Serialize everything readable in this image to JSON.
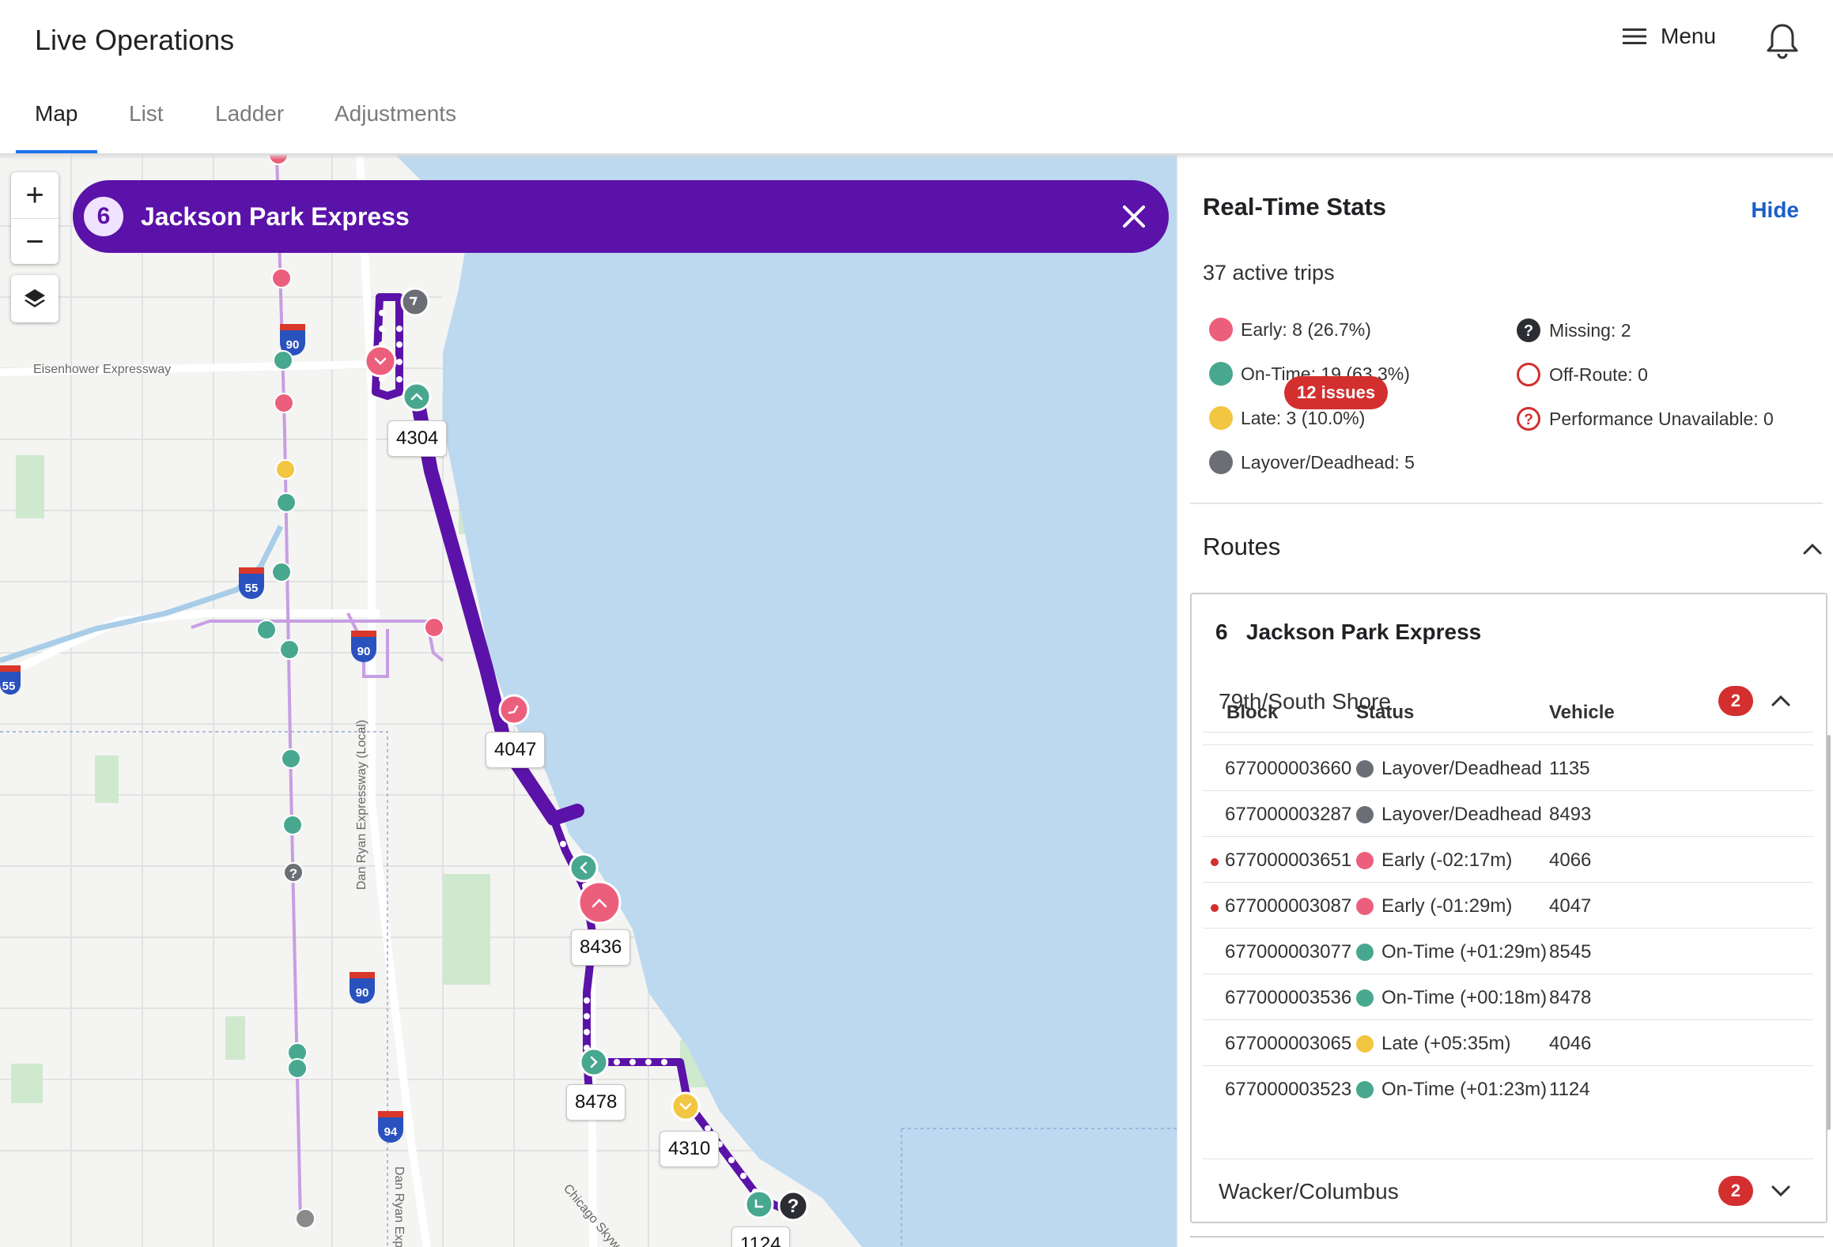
{
  "header": {
    "title": "Live Operations",
    "menu_label": "Menu"
  },
  "tabs": [
    {
      "label": "Map",
      "active": true
    },
    {
      "label": "List",
      "active": false
    },
    {
      "label": "Ladder",
      "active": false
    },
    {
      "label": "Adjustments",
      "active": false
    }
  ],
  "map": {
    "route_number": "6",
    "route_name": "Jackson Park Express",
    "street_labels": {
      "eisenhower": "Eisenhower Expressway",
      "dan_ryan_local": "Dan Ryan Expressway (Local)",
      "dan_ryan": "Dan Ryan Exp",
      "chicago_skyway": "Chicago Skyway"
    },
    "shields": [
      "90",
      "55",
      "90",
      "55",
      "90",
      "94"
    ],
    "vehicle_labels": [
      "4304",
      "4047",
      "8436",
      "8478",
      "4310",
      "1124"
    ],
    "colors": {
      "route": "#5b12a8",
      "early": "#ec5f7c",
      "on_time": "#48a88f",
      "late": "#f2c641",
      "layover": "#6b6f75",
      "missing": "#2b2d33",
      "water": "#bcd9f0"
    }
  },
  "stats": {
    "title": "Real-Time Stats",
    "hide_label": "Hide",
    "active_trips": "37 active trips",
    "legend": {
      "early": "Early: 8 (26.7%)",
      "on_time": "On-Time: 19 (63.3%)",
      "late": "Late: 3 (10.0%)",
      "layover": "Layover/Deadhead: 5",
      "missing": "Missing: 2",
      "off_route": "Off-Route: 0",
      "unavailable": "Performance Unavailable: 0"
    }
  },
  "routes": {
    "title": "Routes",
    "issues_badge": "12 issues",
    "card": {
      "number": "6",
      "name": "Jackson Park Express",
      "directions": [
        {
          "name": "79th/South Shore",
          "count": "2",
          "expanded": true
        },
        {
          "name": "Wacker/Columbus",
          "count": "2",
          "expanded": false
        }
      ],
      "columns": {
        "block": "Block",
        "status": "Status",
        "vehicle": "Vehicle"
      },
      "rows": [
        {
          "block": "677000003660",
          "status": "Layover/Deadhead",
          "vehicle": "1135",
          "color": "#6b6f75",
          "flag": false
        },
        {
          "block": "677000003287",
          "status": "Layover/Deadhead",
          "vehicle": "8493",
          "color": "#6b6f75",
          "flag": false
        },
        {
          "block": "677000003651",
          "status": "Early (-02:17m)",
          "vehicle": "4066",
          "color": "#ec5f7c",
          "flag": true
        },
        {
          "block": "677000003087",
          "status": "Early (-01:29m)",
          "vehicle": "4047",
          "color": "#ec5f7c",
          "flag": true
        },
        {
          "block": "677000003077",
          "status": "On-Time (+01:29m)",
          "vehicle": "8545",
          "color": "#48a88f",
          "flag": false
        },
        {
          "block": "677000003536",
          "status": "On-Time (+00:18m)",
          "vehicle": "8478",
          "color": "#48a88f",
          "flag": false
        },
        {
          "block": "677000003065",
          "status": "Late (+05:35m)",
          "vehicle": "4046",
          "color": "#f2c641",
          "flag": false
        },
        {
          "block": "677000003523",
          "status": "On-Time (+01:23m)",
          "vehicle": "1124",
          "color": "#48a88f",
          "flag": false
        }
      ]
    }
  }
}
